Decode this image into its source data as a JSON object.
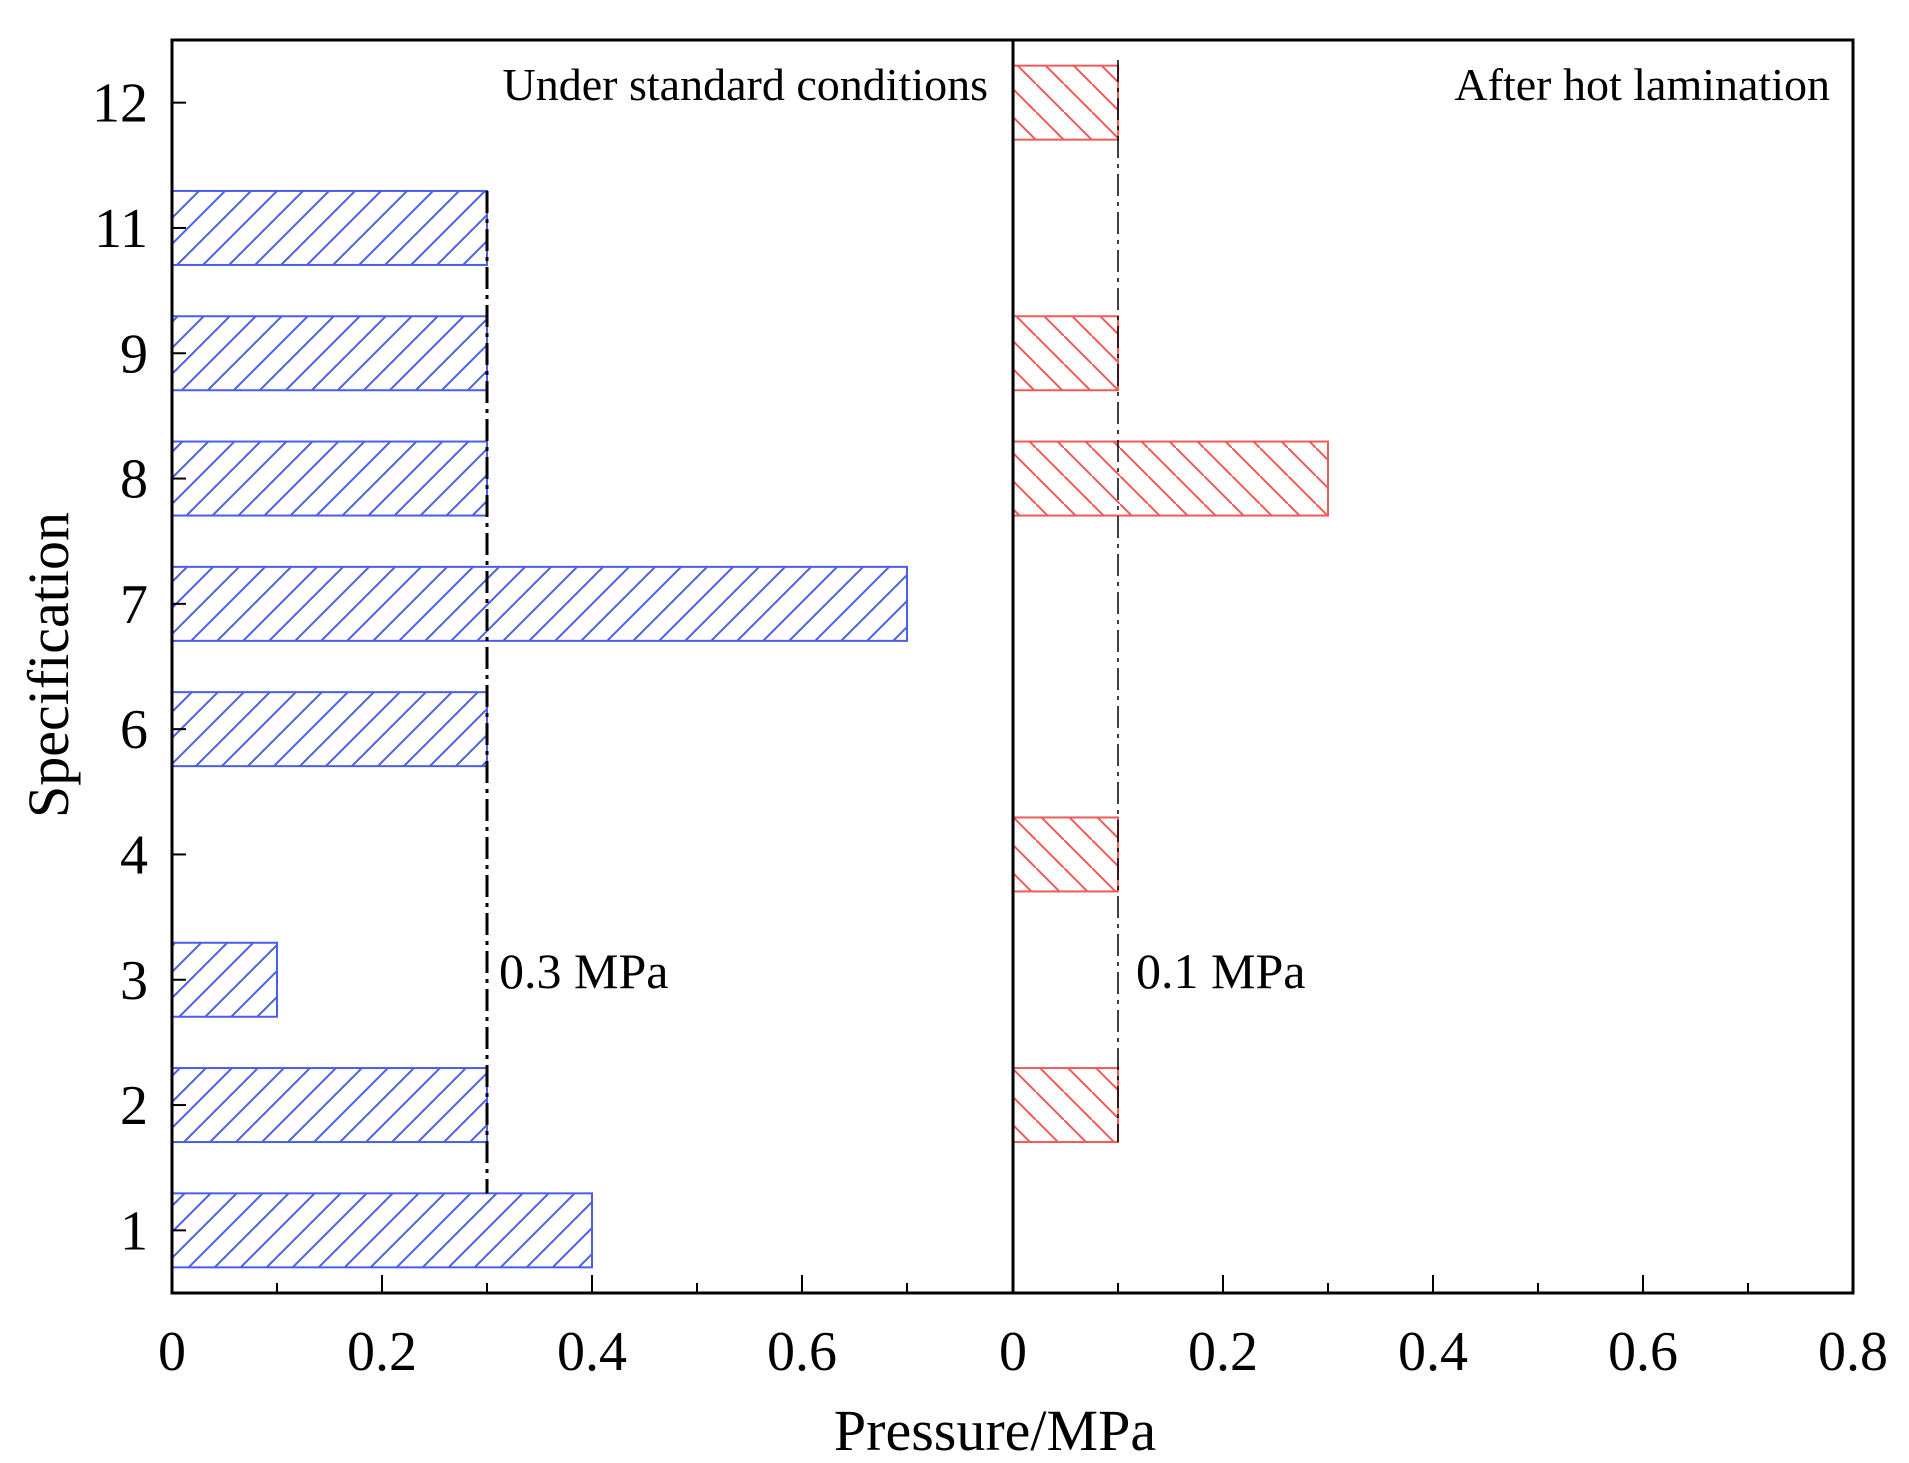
{
  "chart_data": {
    "type": "bar",
    "orientation": "horizontal",
    "xlabel": "Pressure/MPa",
    "ylabel": "Specification",
    "categories": [
      "1",
      "2",
      "3",
      "4",
      "6",
      "7",
      "8",
      "9",
      "11",
      "12"
    ],
    "panels": [
      {
        "title": "Under standard conditions",
        "xlim": [
          0,
          0.8
        ],
        "xticks": [
          "0",
          "0.2",
          "0.4",
          "0.6"
        ],
        "series": [
          {
            "name": "Under standard conditions",
            "color": "#4a5ee8",
            "hatch": "forward",
            "values": [
              0.4,
              0.3,
              0.1,
              null,
              0.3,
              0.7,
              0.3,
              0.3,
              0.3,
              null
            ]
          }
        ],
        "reference_line": {
          "value": 0.3,
          "label": "0.3 MPa",
          "style": "dash-dot"
        }
      },
      {
        "title": "After hot lamination",
        "xlim": [
          0,
          0.8
        ],
        "xticks": [
          "0",
          "0.2",
          "0.4",
          "0.6",
          "0.8"
        ],
        "series": [
          {
            "name": "After hot lamination",
            "color": "#f05a5a",
            "hatch": "backward",
            "values": [
              null,
              0.1,
              null,
              0.1,
              null,
              null,
              0.3,
              0.1,
              null,
              0.1
            ]
          }
        ],
        "reference_line": {
          "value": 0.1,
          "label": "0.1 MPa",
          "style": "dash-dot"
        }
      }
    ]
  }
}
